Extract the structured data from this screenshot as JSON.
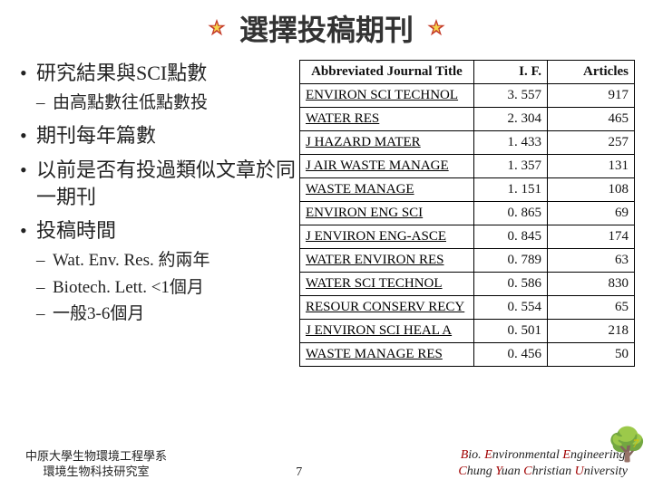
{
  "title": "選擇投稿期刊",
  "bullets": [
    {
      "text": "研究結果與SCI點數",
      "sub": [
        "由高點數往低點數投"
      ]
    },
    {
      "text": "期刊每年篇數"
    },
    {
      "text": "以前是否有投過類似文章於同一期刊"
    },
    {
      "text": "投稿時間",
      "sub": [
        "Wat. Env. Res. 約兩年",
        "Biotech. Lett. <1個月",
        "一般3-6個月"
      ]
    }
  ],
  "table": {
    "headers": {
      "title": "Abbreviated Journal Title",
      "if": "I. F.",
      "articles": "Articles"
    },
    "rows": [
      {
        "name": "ENVIRON SCI TECHNOL",
        "if": "3. 557",
        "articles": "917"
      },
      {
        "name": "WATER RES",
        "if": "2. 304",
        "articles": "465"
      },
      {
        "name": "J HAZARD MATER",
        "if": "1. 433",
        "articles": "257"
      },
      {
        "name": "J AIR WASTE MANAGE",
        "if": "1. 357",
        "articles": "131"
      },
      {
        "name": "WASTE MANAGE",
        "if": "1. 151",
        "articles": "108"
      },
      {
        "name": "ENVIRON ENG SCI",
        "if": "0. 865",
        "articles": "69"
      },
      {
        "name": "J ENVIRON ENG-ASCE",
        "if": "0. 845",
        "articles": "174"
      },
      {
        "name": "WATER ENVIRON RES",
        "if": "0. 789",
        "articles": "63"
      },
      {
        "name": "WATER SCI TECHNOL",
        "if": "0. 586",
        "articles": "830"
      },
      {
        "name": "RESOUR CONSERV RECY",
        "if": "0. 554",
        "articles": "65"
      },
      {
        "name": "J ENVIRON SCI HEAL A",
        "if": "0. 501",
        "articles": "218"
      },
      {
        "name": "WASTE MANAGE RES",
        "if": "0. 456",
        "articles": "50"
      }
    ]
  },
  "footer": {
    "left_line1": "中原大學生物環境工程學系",
    "left_line2": "環境生物科技研究室",
    "page_number": "7",
    "right_line1_html": "<span class='r1'>B</span>io. <span class='r1'>E</span>nvironmental <span class='r1'>E</span>ngineering",
    "right_line2_html": "<span class='r1'>C</span>hung <span class='r1'>Y</span>uan <span class='r1'>C</span>hristian <span class='r1'>U</span>niversity",
    "corner_page": "7"
  },
  "colors": {
    "star_outer": "#c43a2a",
    "star_inner": "#f4d24a",
    "text": "#222222",
    "border": "#000000"
  }
}
